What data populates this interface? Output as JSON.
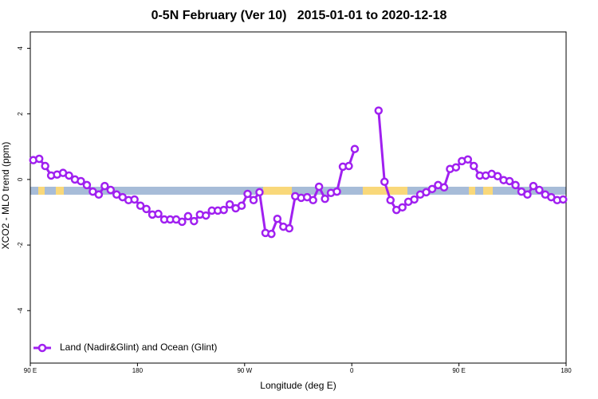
{
  "chart_data": {
    "type": "line",
    "title": "0-5N February (Ver 10)   2015-01-01 to 2020-12-18",
    "xlabel": "Longitude (deg E)",
    "ylabel": "XCO2 - MLO trend (ppm)",
    "x": [
      92.5,
      97.5,
      102.5,
      107.5,
      112.5,
      117.5,
      122.5,
      127.5,
      132.5,
      137.5,
      142.5,
      147.5,
      152.5,
      157.5,
      162.5,
      167.5,
      172.5,
      177.5,
      182.5,
      187.5,
      192.5,
      197.5,
      202.5,
      207.5,
      212.5,
      217.5,
      222.5,
      227.5,
      232.5,
      237.5,
      242.5,
      247.5,
      252.5,
      257.5,
      262.5,
      267.5,
      272.5,
      277.5,
      282.5,
      287.5,
      292.5,
      297.5,
      302.5,
      307.5,
      312.5,
      317.5,
      322.5,
      327.5,
      332.5,
      337.5,
      342.5,
      347.5,
      352.5,
      357.5,
      362.5,
      367.5,
      372.5,
      377.5,
      382.5,
      387.5,
      392.5,
      397.5,
      402.5,
      407.5,
      412.5,
      417.5,
      422.5,
      427.5,
      432.5,
      437.5,
      442.5,
      447.5,
      452.5,
      457.5,
      462.5,
      467.5,
      472.5,
      477.5,
      482.5,
      487.5,
      492.5,
      497.5,
      502.5,
      507.5,
      512.5,
      517.5,
      522.5,
      527.5,
      532.5,
      537.5
    ],
    "series": [
      {
        "name": "Land (Nadir&Glint) and Ocean (Glint)",
        "color": "#a020f0",
        "values": [
          0.59,
          0.63,
          0.41,
          0.12,
          0.15,
          0.2,
          0.12,
          0,
          -0.05,
          -0.17,
          -0.37,
          -0.46,
          -0.2,
          -0.32,
          -0.46,
          -0.54,
          -0.63,
          -0.61,
          -0.8,
          -0.9,
          -1.07,
          -1.05,
          -1.22,
          -1.22,
          -1.22,
          -1.29,
          -1.12,
          -1.27,
          -1.07,
          -1.1,
          -0.95,
          -0.95,
          -0.93,
          -0.76,
          -0.88,
          -0.8,
          -0.44,
          -0.63,
          -0.39,
          -1.63,
          -1.66,
          -1.2,
          -1.44,
          -1.49,
          -0.51,
          -0.56,
          -0.54,
          -0.63,
          -0.22,
          -0.59,
          -0.41,
          -0.37,
          0.39,
          0.41,
          0.93,
          null,
          null,
          null,
          2.1,
          -0.07,
          -0.63,
          -0.93,
          -0.85,
          -0.68,
          -0.61,
          -0.46,
          -0.39,
          -0.29,
          -0.17,
          -0.24,
          0.32,
          0.37,
          0.56,
          0.61,
          0.41,
          0.12,
          0.12,
          0.17,
          0.1,
          -0.02,
          -0.05,
          -0.17,
          -0.37,
          -0.46,
          -0.2,
          -0.32,
          -0.46,
          -0.54,
          -0.63,
          -0.61
        ]
      }
    ],
    "xlim": [
      90,
      540
    ],
    "xticks": [
      {
        "value": 90,
        "label": "90 E"
      },
      180,
      {
        "value": 270,
        "label": "90 W"
      },
      {
        "value": 360,
        "label": "0"
      },
      {
        "value": 450,
        "label": "90 E"
      },
      {
        "value": 540,
        "label": "180"
      }
    ],
    "ylim": [
      -5.6,
      4.5
    ],
    "yticks": [
      -4,
      -2,
      0,
      2,
      4
    ],
    "legend": "bottom-left"
  }
}
